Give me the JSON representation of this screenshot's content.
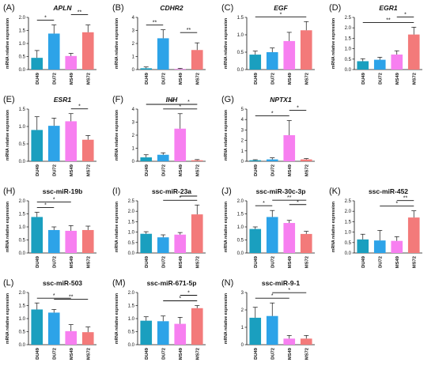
{
  "figure": {
    "categories": [
      "DU49",
      "DU72",
      "MS49",
      "MS72"
    ],
    "colors": [
      "#1a9fbf",
      "#2da3e8",
      "#f77ff0",
      "#f37a7a"
    ],
    "ylabel": "mRNA relative expression"
  },
  "chart_data": [
    {
      "letter": "(A)",
      "title": "APLN",
      "italic": true,
      "type": "bar",
      "categories": [
        "DU49",
        "DU72",
        "MS49",
        "MS72"
      ],
      "values": [
        0.45,
        1.38,
        0.52,
        1.43
      ],
      "errors": [
        0.28,
        0.33,
        0.1,
        0.28
      ],
      "ylim": [
        0,
        2.0
      ],
      "yticks": [
        "0.0",
        "0.5",
        "1.0",
        "1.5",
        "2.0"
      ],
      "ylabel": "mRNA relative expression",
      "significance": [
        {
          "from": 0,
          "to": 1,
          "label": "*"
        },
        {
          "from": 2,
          "to": 3,
          "label": "**"
        }
      ]
    },
    {
      "letter": "(B)",
      "title": "CDHR2",
      "italic": true,
      "type": "bar",
      "categories": [
        "DU49",
        "DU72",
        "MS49",
        "MS72"
      ],
      "values": [
        0.1,
        2.4,
        0.05,
        1.5
      ],
      "errors": [
        0.1,
        0.65,
        0.05,
        0.55
      ],
      "ylim": [
        0,
        4
      ],
      "yticks": [
        "0",
        "1",
        "2",
        "3",
        "4"
      ],
      "ylabel": "mRNA relative expression",
      "significance": [
        {
          "from": 0,
          "to": 1,
          "label": "**"
        },
        {
          "from": 2,
          "to": 3,
          "label": "**"
        }
      ]
    },
    {
      "letter": "(C)",
      "title": "EGF",
      "italic": true,
      "type": "bar",
      "categories": [
        "DU49",
        "DU72",
        "MS49",
        "MS72"
      ],
      "values": [
        0.43,
        0.5,
        0.82,
        1.13
      ],
      "errors": [
        0.1,
        0.12,
        0.25,
        0.25
      ],
      "ylim": [
        0,
        1.5
      ],
      "yticks": [
        "0.0",
        "0.5",
        "1.0",
        "1.5"
      ],
      "ylabel": "mRNA relative expression",
      "significance": [
        {
          "from": 0,
          "to": 3,
          "label": "*"
        }
      ]
    },
    {
      "letter": "(D)",
      "title": "EGR1",
      "italic": true,
      "type": "bar",
      "categories": [
        "DU49",
        "DU72",
        "MS49",
        "MS72"
      ],
      "values": [
        0.4,
        0.47,
        0.72,
        1.68
      ],
      "errors": [
        0.12,
        0.12,
        0.18,
        0.35
      ],
      "ylim": [
        0,
        2.5
      ],
      "yticks": [
        "0.0",
        "0.5",
        "1.0",
        "1.5",
        "2.0",
        "2.5"
      ],
      "ylabel": "mRNA relative expression",
      "significance": [
        {
          "from": 0,
          "to": 3,
          "label": "**"
        },
        {
          "from": 2,
          "to": 3,
          "label": "*"
        }
      ]
    },
    {
      "letter": "(E)",
      "title": "ESR1",
      "italic": true,
      "type": "bar",
      "categories": [
        "DU49",
        "DU72",
        "MS49",
        "MS72"
      ],
      "values": [
        0.9,
        1.02,
        1.15,
        0.62
      ],
      "errors": [
        0.38,
        0.22,
        0.22,
        0.12
      ],
      "ylim": [
        0,
        1.5
      ],
      "yticks": [
        "0.0",
        "0.5",
        "1.0",
        "1.5"
      ],
      "ylabel": "mRNA relative expression",
      "significance": [
        {
          "from": 2,
          "to": 3,
          "label": "*"
        }
      ]
    },
    {
      "letter": "(F)",
      "title": "IHH",
      "italic": true,
      "type": "bar",
      "categories": [
        "DU49",
        "DU72",
        "MS49",
        "MS72"
      ],
      "values": [
        0.3,
        0.5,
        2.5,
        0.08
      ],
      "errors": [
        0.2,
        0.15,
        1.15,
        0.05
      ],
      "ylim": [
        0,
        4
      ],
      "yticks": [
        "0",
        "1",
        "2",
        "3",
        "4"
      ],
      "ylabel": "mRNA relative expression",
      "significance": [
        {
          "from": 1,
          "to": 3,
          "label": "*"
        },
        {
          "from": 2,
          "to": 3,
          "label": "*"
        },
        {
          "from": 0,
          "to": 3,
          "label": "**"
        }
      ]
    },
    {
      "letter": "(G)",
      "title": "NPTX1",
      "italic": true,
      "type": "bar",
      "categories": [
        "DU49",
        "DU72",
        "MS49",
        "MS72"
      ],
      "values": [
        0.1,
        0.18,
        2.5,
        0.18
      ],
      "errors": [
        0.05,
        0.15,
        1.4,
        0.08
      ],
      "ylim": [
        0,
        5
      ],
      "yticks": [
        "0",
        "1",
        "2",
        "3",
        "4",
        "5"
      ],
      "ylabel": "mRNA relative expression",
      "significance": [
        {
          "from": 0,
          "to": 2,
          "label": "*"
        },
        {
          "from": 2,
          "to": 3,
          "label": "*"
        }
      ]
    },
    {
      "letter": "(H)",
      "title": "ssc-miR-19b",
      "italic": false,
      "type": "bar",
      "categories": [
        "DU49",
        "DU72",
        "MS49",
        "MS72"
      ],
      "values": [
        1.38,
        0.88,
        0.85,
        0.88
      ],
      "errors": [
        0.18,
        0.12,
        0.2,
        0.15
      ],
      "ylim": [
        0,
        2.0
      ],
      "yticks": [
        "0.0",
        "0.5",
        "1.0",
        "1.5",
        "2.0"
      ],
      "ylabel": "mRNA relative expression",
      "significance": [
        {
          "from": 0,
          "to": 1,
          "label": "*"
        },
        {
          "from": 0,
          "to": 2,
          "label": "*"
        }
      ]
    },
    {
      "letter": "(I)",
      "title": "ssc-miR-23a",
      "italic": false,
      "type": "bar",
      "categories": [
        "DU49",
        "DU72",
        "MS49",
        "MS72"
      ],
      "values": [
        0.92,
        0.75,
        0.88,
        1.85
      ],
      "errors": [
        0.1,
        0.12,
        0.1,
        0.45
      ],
      "ylim": [
        0,
        2.5
      ],
      "yticks": [
        "0.0",
        "0.5",
        "1.0",
        "1.5",
        "2.0",
        "2.5"
      ],
      "ylabel": "mRNA relative expression",
      "significance": [
        {
          "from": 1,
          "to": 3,
          "label": "*"
        },
        {
          "from": 2,
          "to": 3,
          "label": "*"
        }
      ]
    },
    {
      "letter": "(J)",
      "title": "ssc-miR-30c-3p",
      "italic": false,
      "type": "bar",
      "categories": [
        "DU49",
        "DU72",
        "MS49",
        "MS72"
      ],
      "values": [
        0.92,
        1.38,
        1.15,
        0.73
      ],
      "errors": [
        0.08,
        0.25,
        0.1,
        0.1
      ],
      "ylim": [
        0,
        2.0
      ],
      "yticks": [
        "0.0",
        "0.5",
        "1.0",
        "1.5",
        "2.0"
      ],
      "ylabel": "mRNA relative expression",
      "significance": [
        {
          "from": 0,
          "to": 1,
          "label": "*"
        },
        {
          "from": 1,
          "to": 3,
          "label": "**"
        },
        {
          "from": 2,
          "to": 3,
          "label": "*"
        }
      ]
    },
    {
      "letter": "(K)",
      "title": "ssc-miR-452",
      "italic": false,
      "type": "bar",
      "categories": [
        "DU49",
        "DU72",
        "MS49",
        "MS72"
      ],
      "values": [
        0.65,
        0.6,
        0.58,
        1.7
      ],
      "errors": [
        0.25,
        0.48,
        0.2,
        0.32
      ],
      "ylim": [
        0,
        2.5
      ],
      "yticks": [
        "0.0",
        "0.5",
        "1.0",
        "1.5",
        "2.0",
        "2.5"
      ],
      "ylabel": "mRNA relative expression",
      "significance": [
        {
          "from": 1,
          "to": 3,
          "label": "*"
        },
        {
          "from": 2,
          "to": 3,
          "label": "**"
        }
      ]
    },
    {
      "letter": "(L)",
      "title": "ssc-miR-503",
      "italic": false,
      "type": "bar",
      "categories": [
        "DU49",
        "DU72",
        "MS49",
        "MS72"
      ],
      "values": [
        1.35,
        1.23,
        0.52,
        0.48
      ],
      "errors": [
        0.25,
        0.12,
        0.25,
        0.2
      ],
      "ylim": [
        0,
        2.0
      ],
      "yticks": [
        "0.0",
        "0.5",
        "1.0",
        "1.5",
        "2.0"
      ],
      "ylabel": "mRNA relative expression",
      "significance": [
        {
          "from": 0,
          "to": 2,
          "label": "*"
        },
        {
          "from": 1,
          "to": 3,
          "label": "**"
        }
      ]
    },
    {
      "letter": "(M)",
      "title": "ssc-miR-671-5p",
      "italic": false,
      "type": "bar",
      "categories": [
        "DU49",
        "DU72",
        "MS49",
        "MS72"
      ],
      "values": [
        0.92,
        0.9,
        0.8,
        1.4
      ],
      "errors": [
        0.15,
        0.2,
        0.25,
        0.1
      ],
      "ylim": [
        0,
        2.0
      ],
      "yticks": [
        "0.0",
        "0.5",
        "1.0",
        "1.5",
        "2.0"
      ],
      "ylabel": "mRNA relative expression",
      "significance": [
        {
          "from": 1,
          "to": 3,
          "label": "*"
        },
        {
          "from": 2,
          "to": 3,
          "label": "*"
        }
      ]
    },
    {
      "letter": "(N)",
      "title": "ssc-miR-9-1",
      "italic": false,
      "type": "bar",
      "categories": [
        "DU49",
        "DU72",
        "MS49",
        "MS72"
      ],
      "values": [
        1.55,
        1.65,
        0.35,
        0.35
      ],
      "errors": [
        0.6,
        0.75,
        0.18,
        0.18
      ],
      "ylim": [
        0,
        3
      ],
      "yticks": [
        "0",
        "1",
        "2",
        "3"
      ],
      "ylabel": "mRNA relative expression",
      "significance": [
        {
          "from": 0,
          "to": 2,
          "label": "*"
        },
        {
          "from": 1,
          "to": 3,
          "label": "*"
        }
      ]
    }
  ]
}
